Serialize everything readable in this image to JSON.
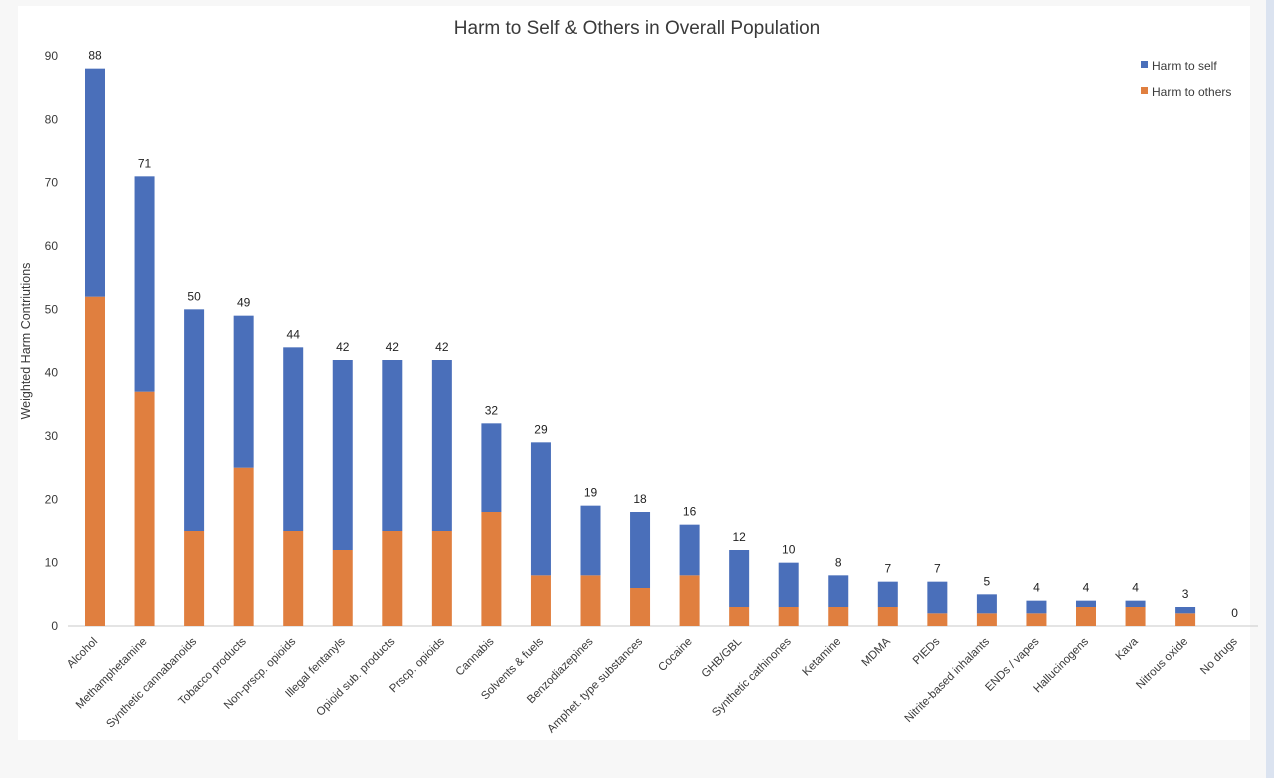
{
  "chart_data": {
    "type": "bar",
    "stacked": true,
    "title": "Harm to Self & Others in Overall Population",
    "xlabel": "",
    "ylabel": "Weighted Harm Contriutions",
    "ylim": [
      0,
      90
    ],
    "yticks": [
      0,
      10,
      20,
      30,
      40,
      50,
      60,
      70,
      80,
      90
    ],
    "legend_position": "top-right",
    "categories": [
      "Alcohol",
      "Methamphetamine",
      "Synthetic cannabanoids",
      "Tobacco products",
      "Non-prscp. opioids",
      "Illegal fentanyls",
      "Opioid sub. products",
      "Prscp. opioids",
      "Cannabis",
      "Solvents & fuels",
      "Benzodiazepines",
      "Amphet. type substances",
      "Cocaine",
      "GHB/GBL",
      "Synthetic cathinones",
      "Ketamine",
      "MDMA",
      "PIEDs",
      "Nitrite-based inhalants",
      "ENDs / vapes",
      "Hallucinogens",
      "Kava",
      "Nitrous oxide",
      "No drugs"
    ],
    "series": [
      {
        "name": "Harm to self",
        "color": "#4a6fba",
        "values": [
          36,
          34,
          35,
          24,
          29,
          30,
          27,
          27,
          14,
          21,
          11,
          12,
          8,
          9,
          7,
          5,
          4,
          5,
          3,
          2,
          1,
          1,
          1,
          0
        ]
      },
      {
        "name": "Harm to others",
        "color": "#e07f3f",
        "values": [
          52,
          37,
          15,
          25,
          15,
          12,
          15,
          15,
          18,
          8,
          8,
          6,
          8,
          3,
          3,
          3,
          3,
          2,
          2,
          2,
          3,
          3,
          2,
          0
        ]
      }
    ],
    "totals": [
      "88",
      "71",
      "50",
      "49",
      "44",
      "42",
      "42",
      "42",
      "32",
      "29",
      "19",
      "18",
      "16",
      "12",
      "10",
      "8",
      "7",
      "7",
      "5",
      "4",
      "4",
      "4",
      "3",
      "0"
    ]
  }
}
